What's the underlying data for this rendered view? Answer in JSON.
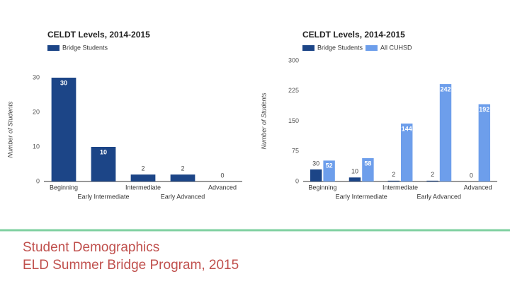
{
  "chart_data": [
    {
      "type": "bar",
      "title": "CELDT Levels, 2014-2015",
      "y_label": "Number of Students",
      "categories": [
        "Beginning",
        "Early Intermediate",
        "Intermediate",
        "Early Advanced",
        "Advanced"
      ],
      "series": [
        {
          "name": "Bridge Students",
          "color": "#1c4587",
          "values": [
            30,
            10,
            2,
            2,
            0
          ]
        }
      ],
      "ylim": [
        0,
        30
      ],
      "yticks": [
        0,
        10,
        20,
        30
      ],
      "grid": false
    },
    {
      "type": "bar",
      "title": "CELDT Levels, 2014-2015",
      "y_label": "Number of Students",
      "categories": [
        "Beginning",
        "Early Intermediate",
        "Intermediate",
        "Early Advanced",
        "Advanced"
      ],
      "series": [
        {
          "name": "Bridge Students",
          "color": "#1c4587",
          "values": [
            30,
            10,
            2,
            2,
            0
          ]
        },
        {
          "name": "All CUHSD",
          "color": "#6d9eeb",
          "values": [
            52,
            58,
            144,
            242,
            192
          ]
        }
      ],
      "ylim": [
        0,
        300
      ],
      "yticks": [
        0,
        75,
        150,
        225,
        300
      ],
      "grid": false
    }
  ],
  "caption": [
    "Student Demographics",
    "ELD Summer Bridge Program, 2015"
  ]
}
